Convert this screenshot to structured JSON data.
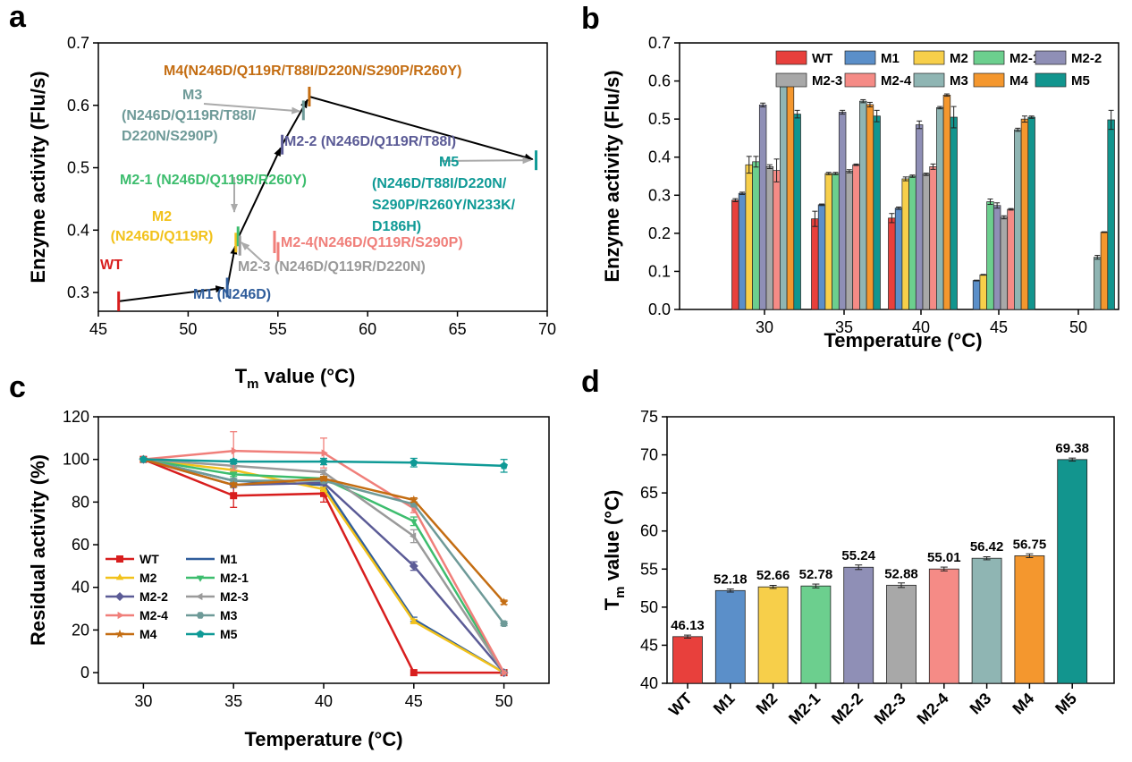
{
  "panel_letters": {
    "a": "a",
    "b": "b",
    "c": "c",
    "d": "d"
  },
  "colors": {
    "WT": "#e8403c",
    "M1": "#5b8fc9",
    "M2": "#f7cf4a",
    "M2-1": "#6ccf8e",
    "M2-2": "#8f8fb6",
    "M2-3": "#a8a8a8",
    "M2-4": "#f58b86",
    "M3": "#8fb5b3",
    "M4": "#f4972e",
    "M5": "#12958e"
  },
  "line_colors": {
    "WT": "#d81e1e",
    "M1": "#2f5d9b",
    "M2": "#f2c21b",
    "M2-1": "#3dbd6e",
    "M2-2": "#5b5b96",
    "M2-3": "#9a9a9a",
    "M2-4": "#f07f7a",
    "M3": "#6e9a98",
    "M4": "#c46d12",
    "M5": "#0f9a96"
  },
  "chart_data": [
    {
      "panel": "a",
      "type": "scatter",
      "xlabel_main": "T",
      "xlabel_sub": "m",
      "xlabel_rest": " value (°C)",
      "ylabel": "Enzyme activity (Flu/s)",
      "xlim": [
        45,
        70
      ],
      "ylim": [
        0.27,
        0.7
      ],
      "xticks": [
        45,
        50,
        55,
        60,
        65,
        70
      ],
      "yticks": [
        0.3,
        0.4,
        0.5,
        0.6,
        0.7
      ],
      "points": [
        {
          "name": "WT",
          "x": 46.13,
          "y": 0.286
        },
        {
          "name": "M1",
          "x": 52.18,
          "y": 0.308
        },
        {
          "name": "M2",
          "x": 52.66,
          "y": 0.38
        },
        {
          "name": "M2-1",
          "x": 52.78,
          "y": 0.39
        },
        {
          "name": "M2-2",
          "x": 55.24,
          "y": 0.537
        },
        {
          "name": "M2-3",
          "x": 52.88,
          "y": 0.375
        },
        {
          "name": "M2-4",
          "x": 55.01,
          "y": 0.365
        },
        {
          "name": "M3",
          "x": 56.42,
          "y": 0.592
        },
        {
          "name": "M4",
          "x": 56.75,
          "y": 0.614
        },
        {
          "name": "M5",
          "x": 69.38,
          "y": 0.512
        }
      ],
      "path": [
        "WT",
        "M1",
        "M2",
        "M2-2",
        "M4",
        "M5"
      ],
      "labels": {
        "WT": [
          "WT"
        ],
        "M1": [
          "M1 (N246D)"
        ],
        "M2": [
          "M2",
          "(N246D/Q119R)"
        ],
        "M2-1": [
          "M2-1 (N246D/Q119R/R260Y)"
        ],
        "M2-2": [
          "M2-2 (N246D/Q119R/T88I)"
        ],
        "M2-3": [
          "M2-3 (N246D/Q119R/D220N)"
        ],
        "M2-4": [
          "M2-4(N246D/Q119R/S290P)"
        ],
        "M3": [
          "M3",
          "(N246D/Q119R/T88I/",
          "D220N/S290P)"
        ],
        "M4": [
          "M4(N246D/Q119R/T88I/D220N/S290P/R260Y)"
        ],
        "M5": [
          "M5",
          "(N246D/T88I/D220N/",
          "S290P/R260Y/N233K/",
          "D186H)"
        ]
      }
    },
    {
      "panel": "b",
      "type": "bar",
      "xlabel": "Temperature (°C)",
      "ylabel": "Enzyme activity (Flu/s)",
      "ylim": [
        0,
        0.7
      ],
      "yticks": [
        0.0,
        0.1,
        0.2,
        0.3,
        0.4,
        0.5,
        0.6,
        0.7
      ],
      "categories": [
        "30",
        "35",
        "40",
        "45",
        "50"
      ],
      "legend": [
        "WT",
        "M1",
        "M2",
        "M2-1",
        "M2-2",
        "M2-3",
        "M2-4",
        "M3",
        "M4",
        "M5"
      ],
      "legend_position": "top-right",
      "series": [
        {
          "name": "WT",
          "values": [
            0.287,
            0.238,
            0.24,
            null,
            null
          ],
          "errors": [
            0.004,
            0.02,
            0.012,
            0,
            0
          ]
        },
        {
          "name": "M1",
          "values": [
            0.305,
            0.275,
            0.266,
            0.076,
            null
          ],
          "errors": [
            0.003,
            0.002,
            0.003,
            0.001,
            0
          ]
        },
        {
          "name": "M2",
          "values": [
            0.38,
            0.357,
            0.343,
            0.091,
            null
          ],
          "errors": [
            0.022,
            0.003,
            0.005,
            0.001,
            0
          ]
        },
        {
          "name": "M2-1",
          "values": [
            0.388,
            0.357,
            0.35,
            0.283,
            null
          ],
          "errors": [
            0.014,
            0.003,
            0.003,
            0.007,
            0
          ]
        },
        {
          "name": "M2-2",
          "values": [
            0.537,
            0.518,
            0.485,
            0.273,
            null
          ],
          "errors": [
            0.005,
            0.005,
            0.01,
            0.007,
            0
          ]
        },
        {
          "name": "M2-3",
          "values": [
            0.375,
            0.363,
            0.355,
            0.242,
            null
          ],
          "errors": [
            0.005,
            0.004,
            0.003,
            0.004,
            0
          ]
        },
        {
          "name": "M2-4",
          "values": [
            0.365,
            0.38,
            0.375,
            0.263,
            null
          ],
          "errors": [
            0.03,
            0.002,
            0.007,
            0.002,
            0
          ]
        },
        {
          "name": "M3",
          "values": [
            0.592,
            0.547,
            0.53,
            0.472,
            0.137
          ],
          "errors": [
            0.007,
            0.004,
            0.003,
            0.004,
            0.005
          ]
        },
        {
          "name": "M4",
          "values": [
            0.614,
            0.538,
            0.563,
            0.5,
            0.203
          ],
          "errors": [
            0.002,
            0.006,
            0.003,
            0.008,
            0.001
          ]
        },
        {
          "name": "M5",
          "values": [
            0.513,
            0.508,
            0.505,
            0.505,
            0.498
          ],
          "errors": [
            0.01,
            0.015,
            0.028,
            0.003,
            0.025
          ]
        }
      ]
    },
    {
      "panel": "c",
      "type": "line",
      "xlabel": "Temperature (°C)",
      "ylabel": "Residual activity (%)",
      "x": [
        30,
        35,
        40,
        45,
        50
      ],
      "xlim": [
        27.5,
        52.5
      ],
      "ylim": [
        -5,
        120
      ],
      "yticks": [
        0,
        20,
        40,
        60,
        80,
        100,
        120
      ],
      "legend_position": "bottom-left",
      "series": [
        {
          "name": "WT",
          "marker": "square",
          "values": [
            100,
            83,
            84,
            0,
            0
          ],
          "errors": [
            0,
            5.5,
            4,
            0,
            0
          ]
        },
        {
          "name": "M1",
          "marker": "circle",
          "values": [
            100,
            90,
            88,
            25,
            0
          ],
          "errors": [
            0,
            1,
            1,
            1,
            0
          ]
        },
        {
          "name": "M2",
          "marker": "triangle-up",
          "values": [
            100,
            95,
            86,
            24,
            0
          ],
          "errors": [
            0,
            1,
            1,
            1,
            0
          ]
        },
        {
          "name": "M2-1",
          "marker": "triangle-down",
          "values": [
            100,
            93,
            91,
            71,
            0
          ],
          "errors": [
            0,
            1,
            1,
            2,
            0
          ]
        },
        {
          "name": "M2-2",
          "marker": "diamond",
          "values": [
            100,
            88,
            89,
            50,
            0
          ],
          "errors": [
            0,
            1,
            1,
            2,
            0
          ]
        },
        {
          "name": "M2-3",
          "marker": "triangle-left",
          "values": [
            100,
            97,
            94,
            64,
            0
          ],
          "errors": [
            0,
            1,
            1,
            3,
            0
          ]
        },
        {
          "name": "M2-4",
          "marker": "triangle-right",
          "values": [
            100,
            104,
            103,
            77,
            0
          ],
          "errors": [
            0,
            9,
            7,
            2,
            0
          ]
        },
        {
          "name": "M3",
          "marker": "hexagon",
          "values": [
            100,
            90,
            90,
            79,
            23
          ],
          "errors": [
            0,
            1,
            1,
            1,
            1
          ]
        },
        {
          "name": "M4",
          "marker": "star",
          "values": [
            100,
            88,
            91,
            81,
            33
          ],
          "errors": [
            0,
            1,
            1,
            1,
            1
          ]
        },
        {
          "name": "M5",
          "marker": "pentagon",
          "values": [
            100,
            99,
            99,
            98.5,
            97
          ],
          "errors": [
            0,
            1,
            1.5,
            2,
            3
          ]
        }
      ]
    },
    {
      "panel": "d",
      "type": "bar",
      "xlabel": "",
      "ylabel_main": "T",
      "ylabel_sub": "m",
      "ylabel_rest": " value (°C)",
      "ylim": [
        40,
        75
      ],
      "yticks": [
        40,
        45,
        50,
        55,
        60,
        65,
        70,
        75
      ],
      "categories": [
        "WT",
        "M1",
        "M2",
        "M2-1",
        "M2-2",
        "M2-3",
        "M2-4",
        "M3",
        "M4",
        "M5"
      ],
      "values": [
        46.13,
        52.18,
        52.66,
        52.78,
        55.24,
        52.88,
        55.01,
        56.42,
        56.75,
        69.38
      ],
      "value_labels": [
        "46.13",
        "52.18",
        "52.66",
        "52.78",
        "55.24",
        "52.88",
        "55.01",
        "56.42",
        "56.75",
        "69.38"
      ],
      "errors": [
        0.2,
        0.2,
        0.2,
        0.25,
        0.3,
        0.3,
        0.25,
        0.2,
        0.25,
        0.2
      ]
    }
  ]
}
